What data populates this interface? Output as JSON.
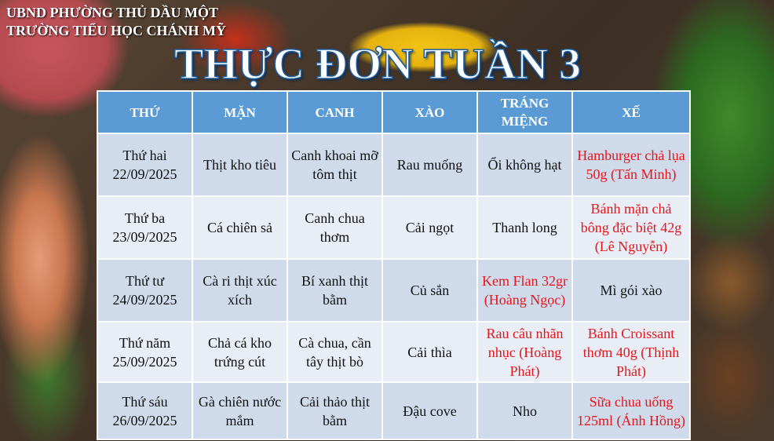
{
  "header": {
    "line1": "UBND PHƯỜNG THỦ DẦU MỘT",
    "line2": "TRƯỜNG TIỂU HỌC CHÁNH MỸ",
    "title": "THỰC ĐƠN TUẦN 3"
  },
  "table": {
    "columns": [
      "THỨ",
      "MẶN",
      "CANH",
      "XÀO",
      "TRÁNG MIỆNG",
      "XẾ"
    ],
    "rows": [
      {
        "day": "Thứ hai",
        "date": "22/09/2025",
        "man": "Thịt kho tiêu",
        "canh": "Canh khoai mỡ tôm thịt",
        "xao": "Rau muống",
        "trang_mieng": "Ổi không hạt",
        "xe": "Hamburger chả lụa 50g (Tấn Minh)"
      },
      {
        "day": "Thứ ba",
        "date": "23/09/2025",
        "man": "Cá chiên sả",
        "canh": "Canh chua thơm",
        "xao": "Cải ngọt",
        "trang_mieng": "Thanh long",
        "xe": "Bánh mặn chả bông đặc biệt 42g (Lê Nguyễn)"
      },
      {
        "day": "Thứ tư",
        "date": "24/09/2025",
        "man": "Cà ri thịt xúc xích",
        "canh": "Bí xanh thịt bằm",
        "xao": "Củ sắn",
        "trang_mieng": "Kem Flan 32gr (Hoàng Ngọc)",
        "xe": "Mì gói xào"
      },
      {
        "day": "Thứ năm",
        "date": "25/09/2025",
        "man": "Chả cá kho trứng cút",
        "canh": "Cà chua, cần tây thịt bò",
        "xao": "Cải thìa",
        "trang_mieng": "Rau câu nhãn nhục (Hoàng Phát)",
        "xe": "Bánh Croissant thơm 40g (Thịnh Phát)"
      },
      {
        "day": "Thứ sáu",
        "date": "26/09/2025",
        "man": "Gà chiên nước mắm",
        "canh": "Cải thảo thịt bằm",
        "xao": "Đậu cove",
        "trang_mieng": "Nho",
        "xe": "Sữa chua uống 125ml (Ánh Hồng)"
      }
    ]
  },
  "colors": {
    "header_bg": "#5b9bd5",
    "row_dark": "#cfdaeb",
    "row_light": "#e8edf6",
    "highlight_text": "#e2171c"
  }
}
